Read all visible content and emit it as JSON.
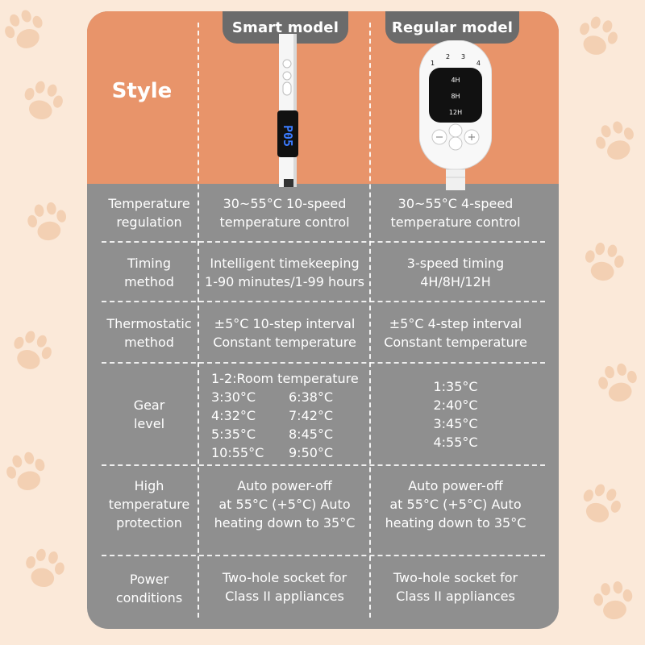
{
  "tabs": {
    "smart": "Smart model",
    "regular": "Regular model"
  },
  "style_label": "Style",
  "smart_display": "P05",
  "regular_device": {
    "gear_numbers": [
      "1",
      "2",
      "3",
      "4"
    ],
    "timers": [
      "4H",
      "8H",
      "12H"
    ]
  },
  "rows": [
    {
      "label": [
        "Temperature",
        "regulation"
      ],
      "smart": [
        "30~55°C 10-speed",
        "temperature control"
      ],
      "regular": [
        "30~55°C 4-speed",
        "temperature control"
      ]
    },
    {
      "label": [
        "Timing",
        "method"
      ],
      "smart": [
        "Intelligent timekeeping",
        "1-90 minutes/1-99 hours"
      ],
      "regular": [
        "3-speed timing",
        "4H/8H/12H"
      ]
    },
    {
      "label": [
        "Thermostatic",
        "method"
      ],
      "smart": [
        "±5°C 10-step interval",
        "Constant temperature"
      ],
      "regular": [
        "±5°C 4-step interval",
        "Constant temperature"
      ]
    },
    {
      "label": [
        "Gear",
        "level"
      ],
      "smart_heading": "1-2:Room temperature",
      "smart_grid": [
        "3:30°C",
        "6:38°C",
        "4:32°C",
        "7:42°C",
        "5:35°C",
        "8:45°C",
        "10:55°C",
        "9:50°C"
      ],
      "regular": [
        "1:35°C",
        "2:40°C",
        "3:45°C",
        "4:55°C"
      ]
    },
    {
      "label": [
        "High",
        "temperature",
        "protection"
      ],
      "smart": [
        "Auto power-off",
        "at 55°C (+5°C) Auto",
        "heating down to 35°C"
      ],
      "regular": [
        "Auto power-off",
        "at 55°C (+5°C) Auto",
        "heating down to 35°C"
      ]
    },
    {
      "label": [
        "Power",
        "conditions"
      ],
      "smart": [
        "Two-hole socket for",
        "Class II appliances"
      ],
      "regular": [
        "Two-hole socket for",
        "Class II appliances"
      ]
    }
  ]
}
